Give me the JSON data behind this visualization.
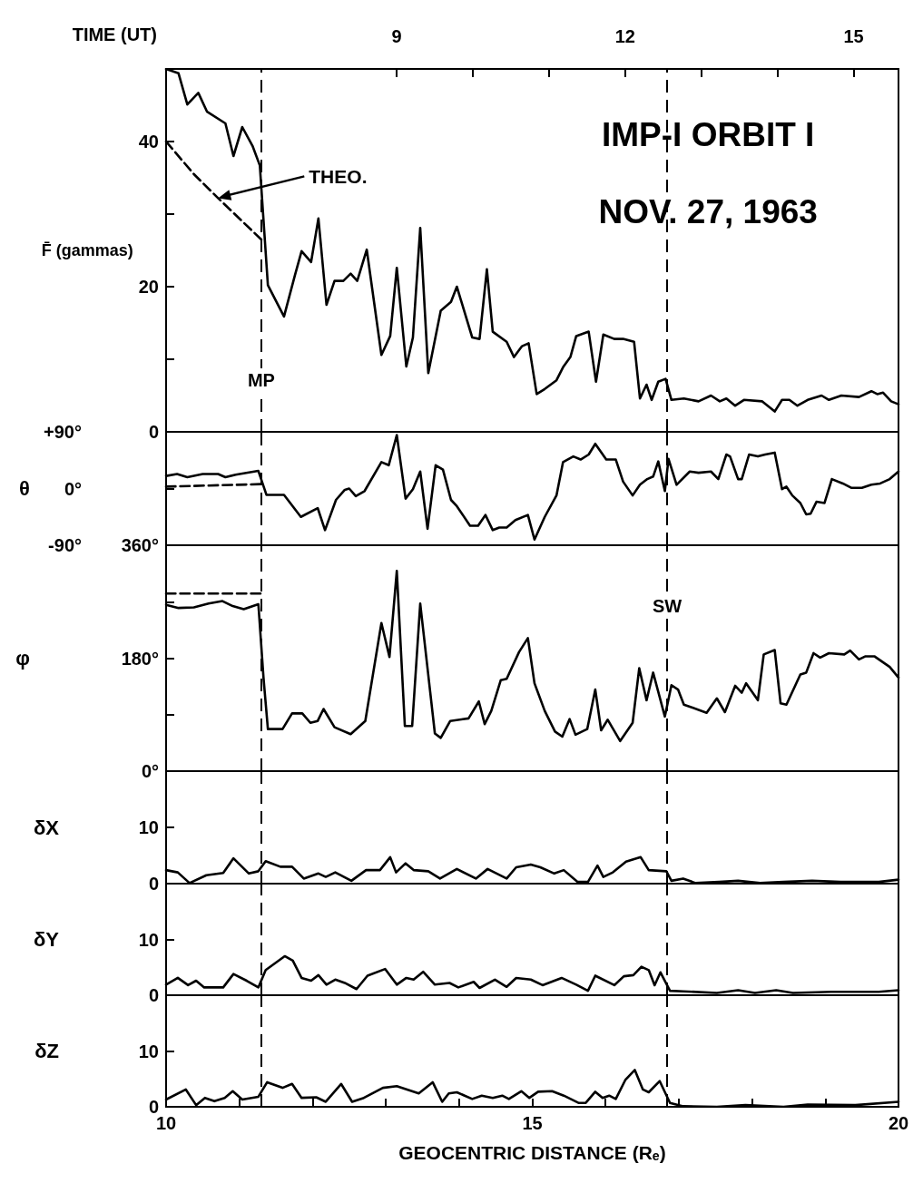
{
  "chart_data": [
    {
      "type": "line",
      "ylabel": "F̄ (gammas)",
      "x2label": "TIME (UT)",
      "xlim": [
        10,
        20
      ],
      "x2lim": [
        5.97,
        15.59
      ],
      "x2ticks": [
        9,
        {
          "value": 10,
          "label": null
        },
        {
          "value": 11,
          "label": null
        },
        12,
        {
          "value": 13,
          "label": null
        },
        {
          "value": 14,
          "label": null
        },
        15
      ],
      "ylim": [
        0,
        50
      ],
      "yticks": [
        0,
        {
          "value": 10,
          "label": null
        },
        20,
        {
          "value": 30,
          "label": null
        },
        40
      ],
      "marker": "none",
      "annotations": [
        "IMP-I ORBIT I",
        "NOV. 27, 1963",
        "THEO."
      ],
      "ref_lines": [
        {
          "axis": "x",
          "value": 11.3,
          "label": "MP",
          "line_style": "dashed",
          "color": "#000000"
        },
        {
          "axis": "x",
          "value": 16.84,
          "line_style": "dashed",
          "color": "#000000"
        }
      ],
      "series": [
        {
          "color": "#000000",
          "line_style": "solid",
          "x": [
            10.0,
            10.17,
            10.29,
            10.44,
            10.56,
            10.81,
            10.92,
            11.04,
            11.18,
            11.28,
            11.39,
            11.61,
            11.76,
            11.85,
            11.98,
            12.08,
            12.19,
            12.3,
            12.42,
            12.52,
            12.61,
            12.74,
            12.94,
            13.06,
            13.15,
            13.28,
            13.37,
            13.47,
            13.58,
            13.75,
            13.89,
            13.97,
            14.18,
            14.28,
            14.38,
            14.46,
            14.65,
            14.75,
            14.86,
            14.95,
            15.06,
            15.17,
            15.33,
            15.42,
            15.52,
            15.6,
            15.77,
            15.87,
            15.97,
            16.12,
            16.24,
            16.39,
            16.47,
            16.56,
            16.63,
            16.72,
            16.82,
            16.9,
            17.07,
            17.27,
            17.44,
            17.56,
            17.65,
            17.77,
            17.89,
            18.14,
            18.31,
            18.41,
            18.51,
            18.62,
            18.76,
            18.95,
            19.05,
            19.22,
            19.46,
            19.63,
            19.71,
            19.79,
            19.9,
            20.0
          ],
          "values": [
            50,
            49.4,
            45.1,
            46.7,
            44.1,
            42.5,
            38.0,
            42.0,
            39.4,
            36.7,
            20.2,
            15.9,
            21.6,
            24.9,
            23.4,
            29.4,
            17.5,
            20.8,
            20.8,
            21.8,
            20.8,
            25.1,
            10.6,
            13.2,
            22.6,
            9.0,
            13.0,
            28.1,
            8.1,
            16.7,
            17.9,
            20.0,
            13.0,
            12.8,
            22.4,
            13.8,
            12.4,
            10.3,
            11.8,
            12.2,
            5.2,
            5.9,
            7.1,
            8.9,
            10.3,
            13.2,
            13.8,
            6.9,
            13.4,
            12.8,
            12.8,
            12.4,
            4.6,
            6.5,
            4.4,
            6.9,
            7.3,
            4.4,
            4.6,
            4.2,
            5.0,
            4.2,
            4.6,
            3.6,
            4.4,
            4.2,
            2.8,
            4.4,
            4.4,
            3.6,
            4.4,
            5.0,
            4.4,
            5.0,
            4.8,
            5.6,
            5.2,
            5.4,
            4.2,
            3.8
          ]
        },
        {
          "color": "#000000",
          "line_style": "dashed",
          "x": [
            10,
            10.38,
            10.71,
            11.3
          ],
          "values": [
            40,
            35.5,
            32.2,
            26.5
          ]
        }
      ]
    },
    {
      "type": "line",
      "ylabel": "θ",
      "xlim": [
        10,
        20
      ],
      "ylim": [
        -90,
        90
      ],
      "yticks": [
        {
          "value": -90,
          "label": "-90°"
        },
        {
          "value": 0,
          "label": "0°"
        },
        {
          "value": 90,
          "label": "+90°"
        }
      ],
      "tick_labels": "y",
      "marker": "none",
      "ref_lines": [
        {
          "axis": "x",
          "value": 11.3,
          "line_style": "dashed",
          "color": "#000000"
        },
        {
          "axis": "x",
          "value": 16.84,
          "line_style": "dashed",
          "color": "#000000"
        }
      ],
      "series": [
        {
          "color": "#000000",
          "line_style": "solid",
          "x": [
            10.0,
            10.15,
            10.29,
            10.5,
            10.71,
            10.81,
            10.95,
            11.26,
            11.37,
            11.61,
            11.84,
            12.07,
            12.17,
            12.32,
            12.44,
            12.5,
            12.59,
            12.71,
            12.94,
            13.04,
            13.15,
            13.27,
            13.37,
            13.47,
            13.57,
            13.68,
            13.78,
            13.89,
            13.97,
            14.15,
            14.26,
            14.36,
            14.46,
            14.55,
            14.65,
            14.77,
            14.94,
            15.03,
            15.17,
            15.33,
            15.42,
            15.56,
            15.66,
            15.77,
            15.86,
            16.01,
            16.14,
            16.24,
            16.37,
            16.47,
            16.57,
            16.65,
            16.72,
            16.81,
            16.86,
            16.97,
            17.15,
            17.27,
            17.44,
            17.54,
            17.65,
            17.7,
            17.81,
            17.86,
            17.96,
            18.08,
            18.18,
            18.31,
            18.41,
            18.47,
            18.55,
            18.66,
            18.74,
            18.8,
            18.88,
            18.99,
            19.09,
            19.24,
            19.36,
            19.5,
            19.63,
            19.75,
            19.88,
            20.0
          ],
          "values": [
            20,
            23,
            18,
            23,
            23,
            18,
            22,
            28,
            -10,
            -10,
            -45,
            -31,
            -66,
            -18,
            -2,
            0,
            -12,
            -4,
            42,
            37,
            85,
            -16,
            -1,
            27,
            -64,
            37,
            30,
            -18,
            -28,
            -59,
            -59,
            -42,
            -66,
            -62,
            -62,
            -50,
            -42,
            -81,
            -45,
            -11,
            42,
            51,
            46,
            54,
            71,
            46,
            46,
            11,
            -11,
            6,
            15,
            19,
            43,
            -4,
            47,
            6,
            27,
            25,
            27,
            15,
            54,
            51,
            15,
            15,
            54,
            51,
            54,
            57,
            -1,
            3,
            -11,
            -23,
            -41,
            -40,
            -21,
            -23,
            15,
            8,
            1,
            1,
            6,
            8,
            15,
            27
          ]
        },
        {
          "color": "#000000",
          "line_style": "dashed",
          "x": [
            10,
            11.3
          ],
          "values": [
            3,
            7
          ]
        }
      ]
    },
    {
      "type": "line",
      "ylabel": "φ",
      "xlim": [
        10,
        20
      ],
      "ylim": [
        0,
        360
      ],
      "yticks": [
        {
          "value": 0,
          "label": "0°"
        },
        {
          "value": 90,
          "label": null
        },
        {
          "value": 180,
          "label": "180°"
        },
        {
          "value": 270,
          "label": null
        },
        {
          "value": 360,
          "label": "360°"
        }
      ],
      "tick_labels": "y",
      "marker": "none",
      "ref_lines": [
        {
          "axis": "x",
          "value": 11.3,
          "line_style": "dashed",
          "color": "#000000"
        },
        {
          "axis": "x",
          "value": 16.84,
          "label": "SW",
          "line_style": "dashed",
          "color": "#000000"
        }
      ],
      "series": [
        {
          "color": "#000000",
          "line_style": "solid",
          "x": [
            10.0,
            10.17,
            10.38,
            10.58,
            10.77,
            10.91,
            11.06,
            11.26,
            11.33,
            11.39,
            11.59,
            11.72,
            11.86,
            11.97,
            12.07,
            12.15,
            12.3,
            12.52,
            12.72,
            12.94,
            13.05,
            13.15,
            13.26,
            13.36,
            13.47,
            13.67,
            13.75,
            13.88,
            14.13,
            14.27,
            14.35,
            14.44,
            14.57,
            14.65,
            14.82,
            14.94,
            15.03,
            15.17,
            15.31,
            15.41,
            15.51,
            15.59,
            15.75,
            15.86,
            15.94,
            16.03,
            16.2,
            16.37,
            16.46,
            16.56,
            16.65,
            16.81,
            16.9,
            16.99,
            17.07,
            17.38,
            17.52,
            17.63,
            17.77,
            17.86,
            17.92,
            18.08,
            18.16,
            18.31,
            18.39,
            18.47,
            18.66,
            18.74,
            18.84,
            18.93,
            19.05,
            19.26,
            19.34,
            19.46,
            19.55,
            19.67,
            19.88,
            20.0
          ],
          "values": [
            265,
            260,
            261,
            267,
            271,
            263,
            258,
            266,
            149,
            67,
            67,
            92,
            92,
            77,
            80,
            99,
            70,
            59,
            80,
            236,
            182,
            319,
            72,
            72,
            267,
            60,
            53,
            80,
            84,
            111,
            75,
            96,
            145,
            147,
            190,
            212,
            140,
            96,
            63,
            55,
            83,
            58,
            67,
            130,
            65,
            82,
            48,
            77,
            164,
            113,
            157,
            87,
            137,
            130,
            106,
            93,
            116,
            94,
            136,
            125,
            140,
            113,
            186,
            193,
            108,
            106,
            154,
            157,
            188,
            181,
            188,
            186,
            192,
            178,
            183,
            183,
            166,
            149
          ]
        },
        {
          "color": "#000000",
          "line_style": "dashed",
          "x": [
            10,
            11.3
          ],
          "values": [
            283,
            283
          ]
        }
      ]
    },
    {
      "type": "line",
      "ylabel": "δX",
      "xlim": [
        10,
        20
      ],
      "ylim": [
        0,
        20
      ],
      "yticks": [
        0,
        10
      ],
      "tick_labels": "y",
      "marker": "none",
      "ref_lines": [
        {
          "axis": "x",
          "value": 11.3,
          "line_style": "dashed",
          "color": "#000000"
        },
        {
          "axis": "x",
          "value": 16.84,
          "line_style": "dashed",
          "color": "#000000"
        }
      ],
      "series": [
        {
          "color": "#000000",
          "line_style": "solid",
          "x": [
            10.0,
            10.16,
            10.32,
            10.55,
            10.78,
            10.92,
            11.13,
            11.26,
            11.36,
            11.56,
            11.72,
            11.88,
            12.08,
            12.18,
            12.31,
            12.53,
            12.73,
            12.92,
            13.06,
            13.14,
            13.27,
            13.38,
            13.58,
            13.74,
            13.97,
            14.23,
            14.39,
            14.65,
            14.78,
            14.98,
            15.11,
            15.3,
            15.43,
            15.62,
            15.76,
            15.89,
            15.97,
            16.1,
            16.28,
            16.48,
            16.59,
            16.83,
            16.9,
            17.06,
            17.23,
            17.55,
            17.81,
            18.11,
            18.43,
            18.82,
            19.21,
            19.73,
            20.0
          ],
          "values": [
            2.4,
            2.0,
            0.1,
            1.5,
            1.9,
            4.5,
            1.8,
            2.2,
            4.0,
            3.0,
            3.0,
            0.9,
            1.8,
            1.2,
            2.0,
            0.5,
            2.4,
            2.4,
            4.7,
            2.0,
            3.6,
            2.4,
            2.2,
            0.9,
            2.6,
            0.9,
            2.6,
            0.9,
            2.9,
            3.4,
            2.9,
            1.8,
            2.4,
            0.3,
            0.3,
            3.2,
            1.2,
            2.0,
            3.9,
            4.7,
            2.4,
            2.2,
            0.5,
            0.9,
            0.1,
            0.3,
            0.5,
            0.1,
            0.3,
            0.5,
            0.3,
            0.3,
            0.7
          ]
        }
      ]
    },
    {
      "type": "line",
      "ylabel": "δY",
      "xlim": [
        10,
        20
      ],
      "ylim": [
        0,
        20
      ],
      "yticks": [
        0,
        10
      ],
      "tick_labels": "y",
      "marker": "none",
      "ref_lines": [
        {
          "axis": "x",
          "value": 11.3,
          "line_style": "dashed",
          "color": "#000000"
        },
        {
          "axis": "x",
          "value": 16.84,
          "line_style": "dashed",
          "color": "#000000"
        }
      ],
      "series": [
        {
          "color": "#000000",
          "line_style": "solid",
          "x": [
            10.0,
            10.16,
            10.3,
            10.41,
            10.52,
            10.78,
            10.92,
            11.1,
            11.26,
            11.36,
            11.62,
            11.73,
            11.85,
            11.98,
            12.08,
            12.19,
            12.31,
            12.44,
            12.6,
            12.75,
            12.99,
            13.15,
            13.28,
            13.38,
            13.51,
            13.67,
            13.87,
            13.99,
            14.2,
            14.28,
            14.49,
            14.65,
            14.78,
            14.98,
            15.14,
            15.4,
            15.6,
            15.76,
            15.86,
            16.12,
            16.25,
            16.38,
            16.49,
            16.59,
            16.67,
            16.75,
            16.88,
            17.06,
            17.52,
            17.81,
            18.04,
            18.33,
            18.56,
            19.08,
            19.73,
            20.0
          ],
          "values": [
            1.9,
            3.1,
            1.8,
            2.6,
            1.4,
            1.4,
            3.8,
            2.6,
            1.4,
            4.5,
            7.0,
            6.2,
            3.1,
            2.6,
            3.6,
            1.9,
            2.8,
            2.2,
            1.1,
            3.5,
            4.7,
            1.9,
            3.1,
            2.8,
            4.2,
            1.9,
            2.2,
            1.4,
            2.4,
            1.3,
            2.8,
            1.5,
            3.1,
            2.8,
            1.8,
            3.1,
            1.9,
            0.8,
            3.5,
            1.8,
            3.4,
            3.6,
            5.1,
            4.5,
            1.8,
            4.1,
            0.8,
            0.7,
            0.4,
            0.9,
            0.4,
            0.9,
            0.4,
            0.6,
            0.6,
            0.9
          ]
        }
      ]
    },
    {
      "type": "line",
      "ylabel": "δZ",
      "xlabel": "GEOCENTRIC DISTANCE (Rₑ)",
      "xlim": [
        10,
        20
      ],
      "xticks": [
        10,
        {
          "value": 11,
          "label": null
        },
        {
          "value": 12,
          "label": null
        },
        {
          "value": 13,
          "label": null
        },
        {
          "value": 14,
          "label": null
        },
        15,
        {
          "value": 16,
          "label": null
        },
        {
          "value": 17,
          "label": null
        },
        {
          "value": 18,
          "label": null
        },
        {
          "value": 19,
          "label": null
        },
        20
      ],
      "ylim": [
        0,
        20
      ],
      "yticks": [
        0,
        10
      ],
      "marker": "none",
      "ref_lines": [
        {
          "axis": "x",
          "value": 11.3,
          "line_style": "dashed",
          "color": "#000000"
        },
        {
          "axis": "x",
          "value": 16.84,
          "line_style": "dashed",
          "color": "#000000"
        }
      ],
      "series": [
        {
          "color": "#000000",
          "line_style": "solid",
          "x": [
            10.0,
            10.27,
            10.41,
            10.53,
            10.66,
            10.8,
            10.91,
            11.04,
            11.26,
            11.38,
            11.59,
            11.72,
            11.85,
            12.05,
            12.18,
            12.39,
            12.54,
            12.7,
            12.96,
            13.15,
            13.45,
            13.64,
            13.77,
            13.86,
            13.97,
            14.18,
            14.31,
            14.46,
            14.59,
            14.68,
            14.85,
            14.96,
            15.08,
            15.27,
            15.43,
            15.63,
            15.73,
            15.86,
            15.96,
            16.05,
            16.14,
            16.27,
            16.4,
            16.51,
            16.59,
            16.74,
            16.88,
            17.06,
            17.52,
            17.91,
            18.43,
            18.76,
            19.41,
            20.0
          ],
          "values": [
            1.3,
            3.1,
            0.3,
            1.6,
            1.0,
            1.6,
            2.8,
            1.3,
            1.8,
            4.4,
            3.4,
            4.1,
            1.6,
            1.7,
            0.9,
            4.1,
            0.9,
            1.6,
            3.4,
            3.7,
            2.4,
            4.4,
            0.9,
            2.4,
            2.6,
            1.4,
            2.0,
            1.6,
            2.0,
            1.4,
            2.8,
            1.6,
            2.7,
            2.8,
            2.0,
            0.7,
            0.7,
            2.7,
            1.6,
            2.0,
            1.4,
            4.8,
            6.6,
            3.1,
            2.6,
            4.6,
            0.7,
            0.1,
            0.0,
            0.3,
            0.0,
            0.4,
            0.3,
            0.9
          ]
        }
      ]
    }
  ]
}
